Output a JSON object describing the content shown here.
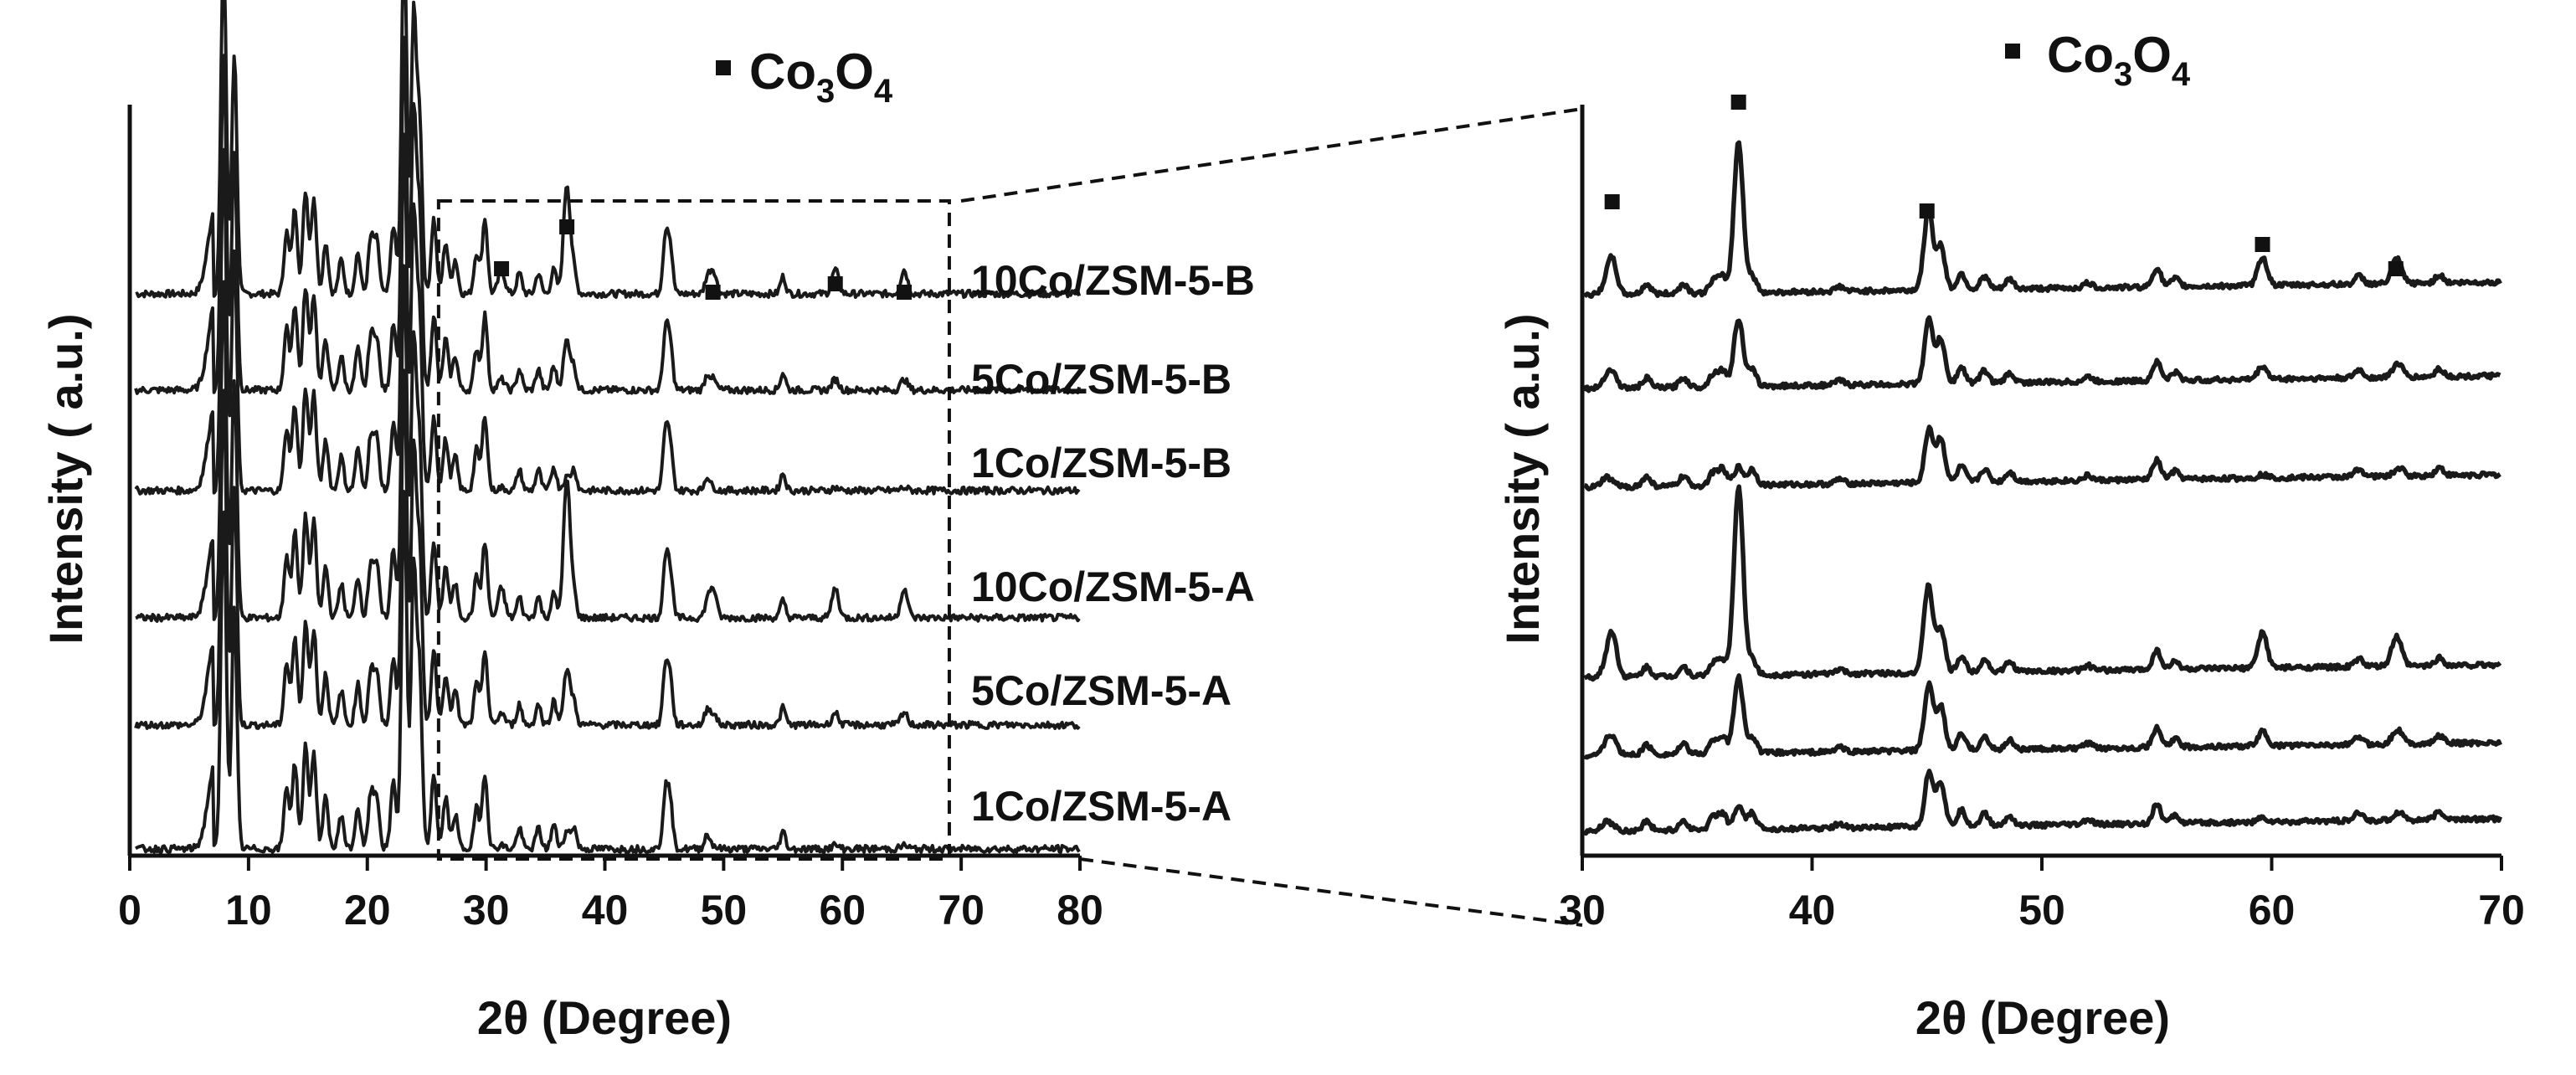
{
  "chart_data": [
    {
      "type": "line",
      "xlabel": "2θ (Degree)",
      "ylabel": "Intensity ( a.u.)",
      "xlim": [
        0,
        80
      ],
      "xticks": [
        0,
        10,
        20,
        30,
        40,
        50,
        60,
        70,
        80
      ],
      "legend": {
        "marker": "■",
        "label": "Co3O4"
      },
      "co3o4_peaks": [
        31.3,
        36.8,
        49.1,
        59.4,
        65.2
      ],
      "zoom_box_x": [
        26,
        69
      ],
      "series": [
        {
          "name": "10Co/ZSM-5-B",
          "co3o4_scale": 1.0
        },
        {
          "name": "5Co/ZSM-5-B",
          "co3o4_scale": 0.45
        },
        {
          "name": "1Co/ZSM-5-B",
          "co3o4_scale": 0.12
        },
        {
          "name": "10Co/ZSM-5-A",
          "co3o4_scale": 1.25
        },
        {
          "name": "5Co/ZSM-5-A",
          "co3o4_scale": 0.5
        },
        {
          "name": "1Co/ZSM-5-A",
          "co3o4_scale": 0.15
        }
      ],
      "zeolite_peaks": [
        {
          "x": 7.9,
          "h": 1.0
        },
        {
          "x": 8.8,
          "h": 0.7
        },
        {
          "x": 13.2,
          "h": 0.18
        },
        {
          "x": 13.9,
          "h": 0.25
        },
        {
          "x": 14.8,
          "h": 0.3
        },
        {
          "x": 15.5,
          "h": 0.28
        },
        {
          "x": 16.5,
          "h": 0.15
        },
        {
          "x": 17.8,
          "h": 0.1
        },
        {
          "x": 19.2,
          "h": 0.12
        },
        {
          "x": 20.3,
          "h": 0.16
        },
        {
          "x": 20.8,
          "h": 0.15
        },
        {
          "x": 22.2,
          "h": 0.2
        },
        {
          "x": 23.1,
          "h": 1.05
        },
        {
          "x": 23.9,
          "h": 0.8
        },
        {
          "x": 24.4,
          "h": 0.5
        },
        {
          "x": 25.6,
          "h": 0.22
        },
        {
          "x": 26.6,
          "h": 0.15
        },
        {
          "x": 27.4,
          "h": 0.1
        },
        {
          "x": 29.2,
          "h": 0.12
        },
        {
          "x": 29.9,
          "h": 0.22
        },
        {
          "x": 32.8,
          "h": 0.06
        },
        {
          "x": 34.4,
          "h": 0.06
        },
        {
          "x": 35.7,
          "h": 0.07
        },
        {
          "x": 37.4,
          "h": 0.06
        },
        {
          "x": 45.1,
          "h": 0.16
        },
        {
          "x": 45.5,
          "h": 0.13
        },
        {
          "x": 48.6,
          "h": 0.04
        },
        {
          "x": 55.0,
          "h": 0.05
        }
      ]
    },
    {
      "type": "line",
      "xlabel": "2θ (Degree)",
      "ylabel": "Intensity ( a.u.)",
      "xlim": [
        30,
        70
      ],
      "xticks": [
        30,
        40,
        50,
        60,
        70
      ],
      "legend": {
        "marker": "■",
        "label": "Co3O4"
      },
      "co3o4_peaks": [
        31.3,
        36.8,
        45.0,
        59.6,
        65.4
      ],
      "series": [
        {
          "name": "10Co/ZSM-5-B",
          "co3o4_scale": 1.0
        },
        {
          "name": "5Co/ZSM-5-B",
          "co3o4_scale": 0.45
        },
        {
          "name": "1Co/ZSM-5-B",
          "co3o4_scale": 0.12
        },
        {
          "name": "10Co/ZSM-5-A",
          "co3o4_scale": 1.25
        },
        {
          "name": "5Co/ZSM-5-A",
          "co3o4_scale": 0.5
        },
        {
          "name": "1Co/ZSM-5-A",
          "co3o4_scale": 0.15
        }
      ]
    }
  ],
  "legend_main": "Co",
  "legend_sub_3": "3",
  "legend_o": "O",
  "legend_sub_4": "4",
  "left": {
    "ylabel": "Intensity ( a.u.)",
    "xlabel": "2θ (Degree)",
    "ticks": [
      "0",
      "10",
      "20",
      "30",
      "40",
      "50",
      "60",
      "70",
      "80"
    ],
    "labels": [
      "10Co/ZSM-5-B",
      "5Co/ZSM-5-B",
      "1Co/ZSM-5-B",
      "10Co/ZSM-5-A",
      "5Co/ZSM-5-A",
      "1Co/ZSM-5-A"
    ]
  },
  "right": {
    "ylabel": "Intensity ( a.u.)",
    "xlabel": "2θ (Degree)",
    "ticks": [
      "30",
      "40",
      "50",
      "60",
      "70"
    ]
  }
}
